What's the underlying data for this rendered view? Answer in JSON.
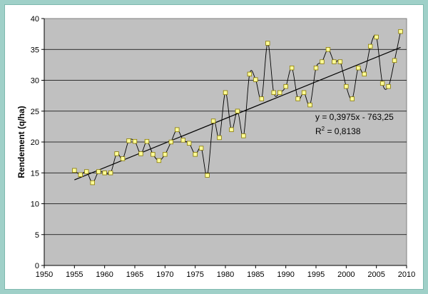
{
  "chart_data": {
    "type": "line",
    "title": "",
    "xlabel": "",
    "ylabel": "Rendement (q/ha)",
    "xlim": [
      1950,
      2010
    ],
    "ylim": [
      0,
      40
    ],
    "x_ticks": [
      "1950",
      "1955",
      "1960",
      "1965",
      "1970",
      "1975",
      "1980",
      "1985",
      "1990",
      "1995",
      "2000",
      "2005",
      "2010"
    ],
    "y_ticks": [
      "0",
      "5",
      "10",
      "15",
      "20",
      "25",
      "30",
      "35",
      "40"
    ],
    "grid": "horizontal",
    "colors": {
      "plot_bg": "#c0c0c0",
      "marker_fill": "#ffff99",
      "marker_stroke": "#8a7a00",
      "line": "#000000",
      "frame": "#9fd0c8"
    },
    "series": [
      {
        "x": [
          1955,
          1956,
          1957,
          1958,
          1959,
          1960,
          1961,
          1962,
          1963,
          1964,
          1965,
          1966,
          1967,
          1968,
          1969,
          1970,
          1971,
          1972,
          1973,
          1974,
          1975,
          1976,
          1977,
          1978,
          1979,
          1980,
          1981,
          1982,
          1983,
          1984,
          1985,
          1986,
          1987,
          1988,
          1989,
          1990,
          1991,
          1992,
          1993,
          1994,
          1995,
          1996,
          1997,
          1998,
          1999,
          2000,
          2001,
          2002,
          2003,
          2004,
          2005,
          2006,
          2007,
          2008,
          2009
        ],
        "values": [
          15.4,
          14.7,
          15.2,
          13.4,
          15.2,
          15.0,
          15.0,
          18.1,
          17.3,
          20.2,
          20.1,
          18.1,
          20.1,
          18.0,
          17.0,
          18.0,
          20.0,
          22.0,
          20.3,
          19.8,
          18.0,
          19.0,
          14.6,
          23.4,
          20.7,
          28.0,
          22.0,
          25.0,
          21.0,
          31.0,
          30.1,
          27.0,
          36.0,
          28.0,
          28.0,
          29.0,
          32.0,
          27.0,
          28.0,
          26.0,
          32.0,
          33.0,
          35.0,
          33.0,
          33.0,
          29.0,
          27.0,
          32.0,
          31.0,
          35.5,
          37.0,
          29.5,
          29.0,
          33.2,
          37.9
        ]
      }
    ],
    "trendline": {
      "slope": 0.3975,
      "intercept": -763.25,
      "x_range": [
        1955,
        2009
      ],
      "equation": "y = 0,3975x - 763,25",
      "r2_label": "R",
      "r2_sup": "2",
      "r2_value": " = 0,8138"
    }
  }
}
